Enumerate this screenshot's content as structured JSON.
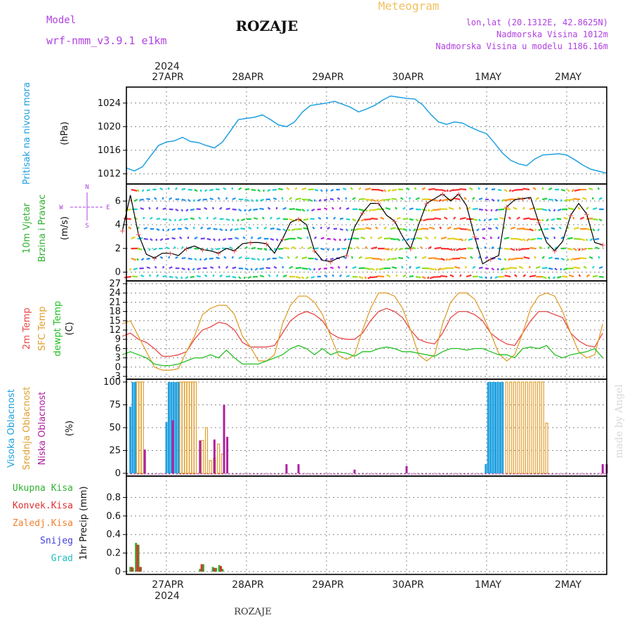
{
  "header": {
    "model_label": "Model",
    "model_name": "wrf-nmm_v3.9.1 e1km",
    "station": "ROZAJE",
    "product": "Meteogram",
    "coords": "lon,lat (20.1312E, 42.8625N)",
    "elevation": "Nadmorska Visina 1012m",
    "model_elevation": "Nadmorska Visina u modelu 1186.16m",
    "footer_station": "ROZAJE",
    "watermark": "made by Angel"
  },
  "time_axis": {
    "year": "2024",
    "days": [
      "27APR",
      "28APR",
      "29APR",
      "30APR",
      "1MAY",
      "2MAY"
    ]
  },
  "panel_labels": {
    "pressure": [
      "Pritisak na nivou mora",
      "(hPa)"
    ],
    "wind": [
      "10m Vjetar",
      "Brzina i Pravac",
      "(m/s)"
    ],
    "compass": {
      "n": "N",
      "s": "S",
      "w": "W",
      "e": "E"
    },
    "temp": [
      "2m Temp",
      "SFC Temp",
      "dewpt Temp",
      "(C)"
    ],
    "cloud": [
      "Visoka Oblacnost",
      "Srednja Oblacnost",
      "Niska Oblacnost",
      "(%)"
    ],
    "precip_legend": [
      "Ukupna Kisa",
      "Konvek.Kisa",
      "Zaledj.Kisa",
      "Snijeg",
      "Grad"
    ],
    "precip_axis": "1hr Precip (mm)"
  },
  "colors": {
    "pressure": "#1fa0e0",
    "temp_2m": "#e84848",
    "temp_sfc": "#e0a030",
    "dewpoint": "#22c022",
    "cloud_high": "#20a0e0",
    "cloud_mid": "#e0a030",
    "cloud_low": "#b020a0",
    "precip_total": "#30b030",
    "precip_conv": "#e03030",
    "precip_frz": "#f08030",
    "precip_snow": "#4040e0",
    "precip_hail": "#20c0c0",
    "label_purple": "#b040e0",
    "label_gold": "#f0c060"
  },
  "chart_data": [
    {
      "type": "line",
      "panel": "pressure",
      "ylabel": "(hPa)",
      "ylim": [
        1011,
        1026
      ],
      "yticks": [
        1012,
        1016,
        1020,
        1024
      ],
      "x_days": [
        -0.5,
        -0.4,
        -0.3,
        -0.2,
        -0.1,
        0,
        0.1,
        0.2,
        0.3,
        0.4,
        0.5,
        0.6,
        0.7,
        0.8,
        0.9,
        1.0,
        1.1,
        1.2,
        1.3,
        1.4,
        1.5,
        1.6,
        1.7,
        1.8,
        1.9,
        2.0,
        2.1,
        2.2,
        2.3,
        2.4,
        2.5,
        2.6,
        2.7,
        2.8,
        2.9,
        3.0,
        3.1,
        3.2,
        3.3,
        3.4,
        3.5,
        3.6,
        3.7,
        3.8,
        3.9,
        4.0,
        4.1,
        4.2,
        4.3,
        4.4,
        4.5,
        4.6,
        4.7,
        4.8,
        4.9,
        5.0,
        5.1,
        5.2,
        5.3,
        5.5,
        5.5
      ],
      "values": [
        1013,
        1012.5,
        1013.2,
        1015,
        1016.8,
        1017.4,
        1017.6,
        1018.2,
        1017.5,
        1017.3,
        1016.8,
        1016.4,
        1017.4,
        1019.3,
        1021.2,
        1021.4,
        1021.6,
        1022,
        1021.2,
        1020.3,
        1020,
        1020.8,
        1022.5,
        1023.6,
        1023.8,
        1024,
        1024.3,
        1023.8,
        1023.3,
        1022.5,
        1023,
        1023.6,
        1024.5,
        1025.2,
        1025,
        1024.8,
        1024.7,
        1023.7,
        1022.1,
        1020.8,
        1020.4,
        1020.8,
        1020.6,
        1019.9,
        1019.3,
        1018.8,
        1017.2,
        1015.5,
        1014.3,
        1013.7,
        1013.4,
        1014.5,
        1015.2,
        1015.3,
        1015.4,
        1015.2,
        1014.4,
        1013.5,
        1012.8,
        1012.1,
        1012.1
      ]
    },
    {
      "type": "line",
      "panel": "wind",
      "ylabel": "(m/s)",
      "ylim": [
        -0.5,
        7.2
      ],
      "yticks": [
        0,
        2,
        4,
        6
      ],
      "series": [
        {
          "name": "10m Vjetar",
          "x_days": [
            -0.55,
            -0.45,
            -0.35,
            -0.25,
            -0.15,
            -0.05,
            0.05,
            0.15,
            0.25,
            0.35,
            0.45,
            0.55,
            0.65,
            0.75,
            0.85,
            0.95,
            1.05,
            1.15,
            1.25,
            1.35,
            1.45,
            1.55,
            1.65,
            1.75,
            1.85,
            1.95,
            2.05,
            2.15,
            2.25,
            2.35,
            2.45,
            2.55,
            2.65,
            2.75,
            2.85,
            2.95,
            3.05,
            3.15,
            3.25,
            3.35,
            3.45,
            3.55,
            3.65,
            3.75,
            3.85,
            3.95,
            4.05,
            4.15,
            4.25,
            4.35,
            4.45,
            4.55,
            4.65,
            4.75,
            4.85,
            4.95,
            5.05,
            5.15,
            5.25,
            5.35,
            5.45
          ],
          "values": [
            3.5,
            6.5,
            3.2,
            1.5,
            1.2,
            1.6,
            1.6,
            1.4,
            2.0,
            2.2,
            1.9,
            1.8,
            1.6,
            2.0,
            1.8,
            2.4,
            2.5,
            2.5,
            2.4,
            1.6,
            2.8,
            4.2,
            4.5,
            4.0,
            1.8,
            1.0,
            0.9,
            1.2,
            1.4,
            3.8,
            5.0,
            5.8,
            5.8,
            4.8,
            4.3,
            3.0,
            2.0,
            4.0,
            5.8,
            6.2,
            6.6,
            6.0,
            6.6,
            5.6,
            3.0,
            0.7,
            1.1,
            1.4,
            5.5,
            6.1,
            6.2,
            6.3,
            4.2,
            2.5,
            1.8,
            2.6,
            4.8,
            5.8,
            4.9,
            2.5,
            2.3
          ]
        }
      ]
    },
    {
      "type": "line",
      "panel": "temperature",
      "ylabel": "(C)",
      "ylim": [
        -3,
        27
      ],
      "yticks": [
        -3,
        0,
        3,
        6,
        9,
        12,
        15,
        18,
        21,
        24,
        27
      ],
      "x_days": [
        -0.55,
        -0.45,
        -0.35,
        -0.25,
        -0.15,
        -0.05,
        0.05,
        0.15,
        0.25,
        0.35,
        0.45,
        0.55,
        0.65,
        0.75,
        0.85,
        0.95,
        1.05,
        1.15,
        1.25,
        1.35,
        1.45,
        1.55,
        1.65,
        1.75,
        1.85,
        1.95,
        2.05,
        2.15,
        2.25,
        2.35,
        2.45,
        2.55,
        2.65,
        2.75,
        2.85,
        2.95,
        3.05,
        3.15,
        3.25,
        3.35,
        3.45,
        3.55,
        3.65,
        3.75,
        3.85,
        3.95,
        4.05,
        4.15,
        4.25,
        4.35,
        4.45,
        4.55,
        4.65,
        4.75,
        4.85,
        4.95,
        5.05,
        5.15,
        5.25,
        5.35,
        5.45
      ],
      "series": [
        {
          "name": "2m Temp",
          "values": [
            10,
            11,
            9,
            8,
            6,
            3.5,
            3.5,
            4,
            5,
            9,
            12,
            13,
            14.5,
            14,
            12,
            8,
            6.5,
            6.5,
            6.5,
            7,
            11,
            15,
            17,
            18,
            17,
            15,
            11,
            9.5,
            9,
            9,
            11,
            15,
            18,
            19,
            18,
            16,
            12,
            9,
            8,
            7.5,
            11,
            16,
            18,
            18,
            17,
            15,
            11,
            9,
            7.5,
            7,
            11,
            15,
            18,
            18,
            17,
            16,
            11,
            8.5,
            7,
            6.5,
            11
          ]
        },
        {
          "name": "SFC Temp",
          "values": [
            14,
            15,
            10,
            5,
            0,
            -1,
            -1,
            -0.5,
            5,
            10,
            17,
            19,
            20,
            20,
            17,
            10,
            6.5,
            2,
            2,
            4,
            14,
            20,
            23,
            23,
            21,
            17,
            10,
            3.8,
            2.5,
            4,
            12,
            19,
            24,
            24,
            23,
            19,
            12,
            4,
            2,
            4,
            14,
            21,
            24,
            24,
            22,
            17,
            11,
            4.5,
            2,
            4,
            11,
            19,
            23,
            24,
            23,
            18,
            11,
            5,
            3,
            4,
            14
          ]
        },
        {
          "name": "dewpt Temp",
          "values": [
            4,
            5,
            4,
            3,
            1,
            0.5,
            0.5,
            1,
            2,
            3,
            3,
            4,
            3,
            5.5,
            3,
            1,
            1,
            1,
            2,
            3,
            4,
            6,
            7,
            6,
            4,
            6,
            4,
            5,
            4.5,
            3.5,
            5,
            5,
            6,
            6.5,
            6,
            5,
            5,
            4.5,
            4,
            3.5,
            5,
            6,
            6,
            5.5,
            6,
            6,
            5,
            4,
            4,
            3,
            6,
            6.5,
            6,
            7,
            4,
            3,
            4,
            4.5,
            5,
            6,
            3
          ]
        }
      ]
    },
    {
      "type": "bar",
      "panel": "cloud",
      "ylabel": "(%)",
      "ylim": [
        0,
        100
      ],
      "yticks": [
        0,
        25,
        50,
        75,
        100
      ],
      "series": [
        {
          "name": "Visoka Oblacnost",
          "bars": [
            [
              -0.45,
              73
            ],
            [
              -0.42,
              100
            ],
            [
              -0.39,
              100
            ],
            [
              0.0,
              56
            ],
            [
              0.03,
              100
            ],
            [
              0.06,
              100
            ],
            [
              0.09,
              100
            ],
            [
              0.12,
              100
            ],
            [
              0.15,
              100
            ],
            [
              3.99,
              10
            ],
            [
              4.02,
              100
            ],
            [
              4.05,
              100
            ],
            [
              4.08,
              100
            ],
            [
              4.11,
              100
            ],
            [
              4.14,
              100
            ],
            [
              4.17,
              100
            ],
            [
              4.2,
              100
            ]
          ]
        },
        {
          "name": "Srednja Oblacnost",
          "bars": [
            [
              -0.36,
              100
            ],
            [
              -0.33,
              100
            ],
            [
              -0.3,
              100
            ],
            [
              0.18,
              100
            ],
            [
              0.21,
              100
            ],
            [
              0.24,
              100
            ],
            [
              0.27,
              100
            ],
            [
              0.3,
              100
            ],
            [
              0.33,
              100
            ],
            [
              0.36,
              100
            ],
            [
              0.45,
              36
            ],
            [
              0.5,
              50
            ],
            [
              0.55,
              14
            ],
            [
              0.6,
              17
            ],
            [
              0.65,
              32
            ],
            [
              0.7,
              21
            ],
            [
              4.25,
              100
            ],
            [
              4.3,
              100
            ],
            [
              4.35,
              100
            ],
            [
              4.4,
              100
            ],
            [
              4.45,
              100
            ],
            [
              4.5,
              100
            ],
            [
              4.55,
              100
            ],
            [
              4.6,
              100
            ],
            [
              4.65,
              100
            ],
            [
              4.7,
              100
            ],
            [
              4.75,
              55
            ]
          ]
        },
        {
          "name": "Niska Oblacnost",
          "bars": [
            [
              -0.27,
              26
            ],
            [
              0.08,
              58
            ],
            [
              0.42,
              36
            ],
            [
              0.6,
              37
            ],
            [
              0.72,
              75
            ],
            [
              0.76,
              40
            ],
            [
              1.5,
              10
            ],
            [
              1.65,
              10
            ],
            [
              2.35,
              4
            ],
            [
              3.0,
              8
            ],
            [
              5.45,
              10
            ],
            [
              5.5,
              10
            ]
          ]
        }
      ]
    },
    {
      "type": "bar",
      "panel": "precipitation",
      "ylabel": "1hr Precip (mm)",
      "ylim": [
        0,
        1.0
      ],
      "yticks": [
        0,
        0.2,
        0.4,
        0.6,
        0.8
      ],
      "series": [
        {
          "name": "Ukupna Kisa",
          "bars": [
            [
              -0.45,
              0.05
            ],
            [
              -0.42,
              0.04
            ],
            [
              -0.38,
              0.31
            ],
            [
              -0.35,
              0.29
            ],
            [
              -0.32,
              0.05
            ],
            [
              0.42,
              0.03
            ],
            [
              0.46,
              0.08
            ],
            [
              0.58,
              0.05
            ],
            [
              0.62,
              0.04
            ],
            [
              0.66,
              0.07
            ],
            [
              0.7,
              0.03
            ]
          ]
        },
        {
          "name": "Konvek.Kisa",
          "bars": [
            [
              -0.43,
              0.05
            ],
            [
              -0.36,
              0.29
            ],
            [
              -0.33,
              0.05
            ],
            [
              0.44,
              0.08
            ],
            [
              0.6,
              0.04
            ],
            [
              0.68,
              0.06
            ]
          ]
        }
      ]
    }
  ]
}
